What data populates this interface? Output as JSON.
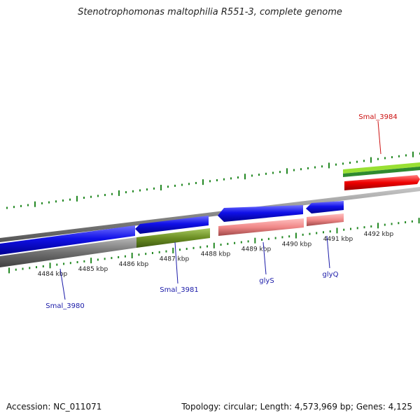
{
  "title": "Stenotrophomonas maltophilia R551-3, complete genome",
  "footer": {
    "accession": "Accession: NC_011071",
    "topology": "Topology: circular; Length: 4,573,969 bp; Genes: 4,125"
  },
  "colors": {
    "forward_cds": "#1010e0",
    "reverse_cds": "#f08a8a",
    "backbone": "#8c8c8c",
    "tick": "#228822",
    "label_forward": "#1a1aa8",
    "label_red": "#cc1111",
    "gene_gray": "#707070",
    "gene_olive": "#6b8e23",
    "gene_lightgreen": "#99e033",
    "gene_darkgreen": "#2f8a2f",
    "gene_red": "#ee0000"
  },
  "axis": {
    "unit": "kbp",
    "labels": [
      "4484 kbp",
      "4485 kbp",
      "4486 kbp",
      "4487 kbp",
      "4488 kbp",
      "4489 kbp",
      "4490 kbp",
      "4491 kbp",
      "4492 kbp"
    ]
  },
  "features": [
    {
      "name": "Smal_3980",
      "color": "blue"
    },
    {
      "name": "Smal_3981",
      "color": "blue"
    },
    {
      "name": "glyS",
      "color": "blue"
    },
    {
      "name": "glyQ",
      "color": "blue"
    },
    {
      "name": "Smal_3984",
      "color": "red"
    }
  ]
}
